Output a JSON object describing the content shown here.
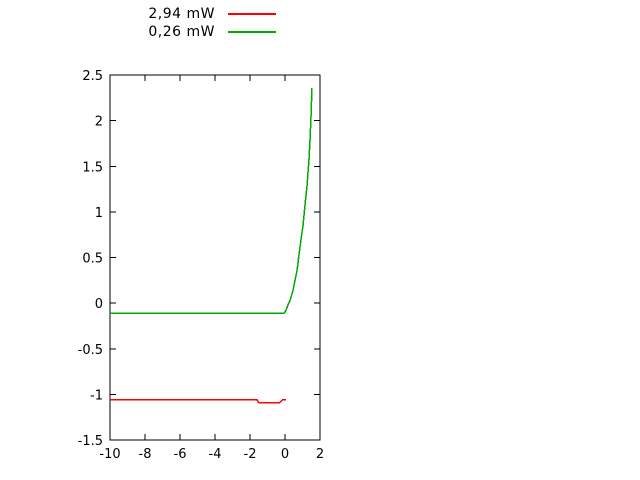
{
  "chart_data": {
    "type": "line",
    "title": "",
    "xlabel": "",
    "ylabel": "",
    "xlim": [
      -10,
      2
    ],
    "ylim": [
      -1.5,
      2.5
    ],
    "grid": false,
    "legend_position": "above-plot-left",
    "axis_color": "#000000",
    "background_color": "#ffffff",
    "xticks": [
      {
        "v": -10,
        "label": "-10"
      },
      {
        "v": -8,
        "label": "-8"
      },
      {
        "v": -6,
        "label": "-6"
      },
      {
        "v": -4,
        "label": "-4"
      },
      {
        "v": -2,
        "label": "-2"
      },
      {
        "v": 0,
        "label": "0"
      },
      {
        "v": 2,
        "label": "2"
      }
    ],
    "yticks": [
      {
        "v": 2.5,
        "label": "2.5"
      },
      {
        "v": 2,
        "label": "2"
      },
      {
        "v": 1.5,
        "label": "1.5"
      },
      {
        "v": 1,
        "label": "1"
      },
      {
        "v": 0.5,
        "label": "0.5"
      },
      {
        "v": 0,
        "label": "0"
      },
      {
        "v": -0.5,
        "label": "-0.5"
      },
      {
        "v": -1,
        "label": "-1"
      },
      {
        "v": -1.5,
        "label": "-1.5"
      }
    ],
    "series": [
      {
        "name": "2,94 mW",
        "color": "#ff0000",
        "points": [
          [
            -10,
            -1.06
          ],
          [
            -1.6,
            -1.06
          ],
          [
            -1.5,
            -1.09
          ],
          [
            -0.3,
            -1.09
          ],
          [
            -0.15,
            -1.06
          ],
          [
            0.05,
            -1.06
          ]
        ]
      },
      {
        "name": "0,26 mW",
        "color": "#00aa00",
        "points": [
          [
            -10,
            -0.11
          ],
          [
            -0.05,
            -0.11
          ],
          [
            0.06,
            -0.08
          ],
          [
            0.17,
            -0.02
          ],
          [
            0.29,
            0.03
          ],
          [
            0.46,
            0.14
          ],
          [
            0.57,
            0.25
          ],
          [
            0.69,
            0.36
          ],
          [
            0.8,
            0.53
          ],
          [
            0.91,
            0.69
          ],
          [
            1.03,
            0.85
          ],
          [
            1.14,
            1.07
          ],
          [
            1.26,
            1.29
          ],
          [
            1.37,
            1.57
          ],
          [
            1.43,
            1.79
          ],
          [
            1.49,
            2.06
          ],
          [
            1.54,
            2.36
          ]
        ]
      }
    ]
  }
}
